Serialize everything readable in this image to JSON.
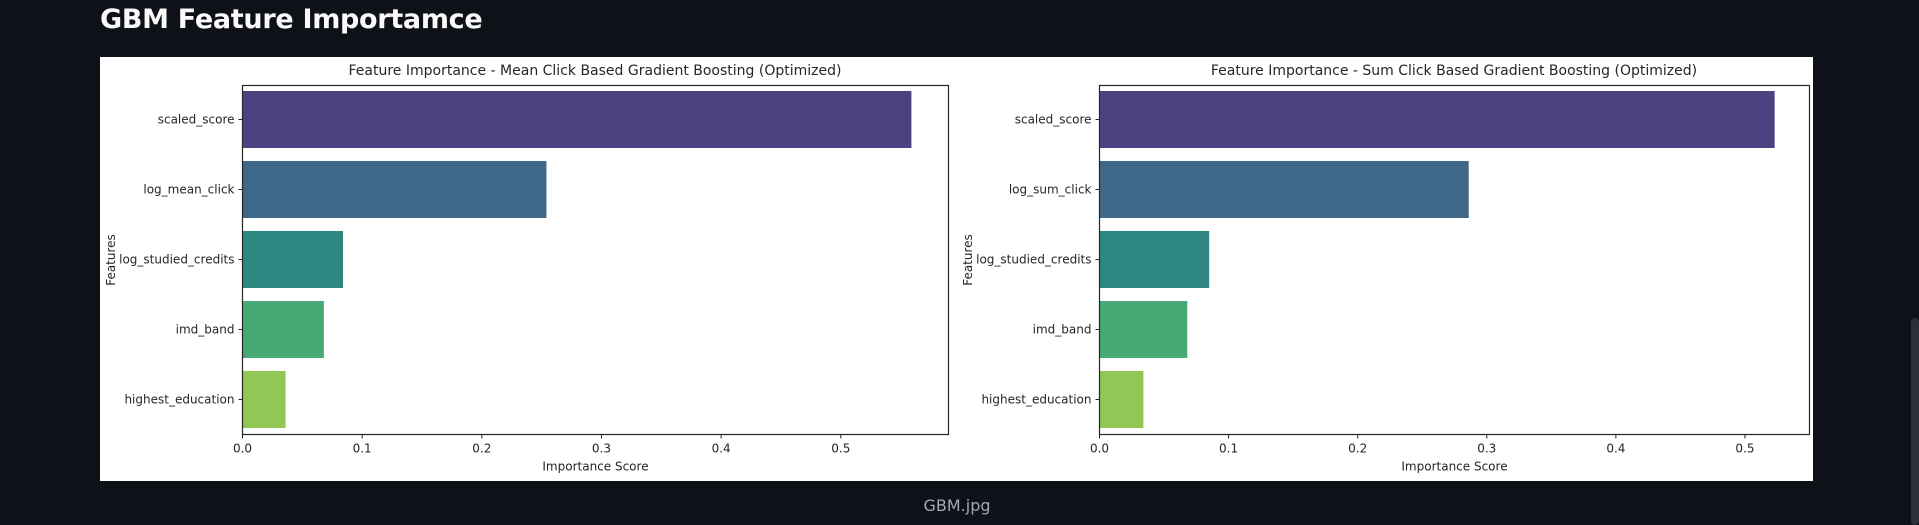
{
  "page": {
    "heading": "GBM Feature Importamce",
    "caption": "GBM.jpg"
  },
  "chart_data": [
    {
      "type": "bar",
      "orientation": "horizontal",
      "title": "Feature Importance - Mean Click Based Gradient Boosting (Optimized)",
      "xlabel": "Importance Score",
      "ylabel": "Features",
      "categories": [
        "scaled_score",
        "log_mean_click",
        "log_studied_credits",
        "imd_band",
        "highest_education"
      ],
      "values": [
        0.559,
        0.254,
        0.084,
        0.068,
        0.036
      ],
      "xlim": [
        0,
        0.59
      ],
      "xticks": [
        0.0,
        0.1,
        0.2,
        0.3,
        0.4,
        0.5
      ],
      "xtick_labels": [
        "0.0",
        "0.1",
        "0.2",
        "0.3",
        "0.4",
        "0.5"
      ],
      "grid": false,
      "colors": [
        "#4c4281",
        "#3f6787",
        "#2f8781",
        "#48a974",
        "#91c754"
      ]
    },
    {
      "type": "bar",
      "orientation": "horizontal",
      "title": "Feature Importance - Sum Click Based Gradient Boosting (Optimized)",
      "xlabel": "Importance Score",
      "ylabel": "Features",
      "categories": [
        "scaled_score",
        "log_sum_click",
        "log_studied_credits",
        "imd_band",
        "highest_education"
      ],
      "values": [
        0.523,
        0.286,
        0.085,
        0.068,
        0.034
      ],
      "xlim": [
        0,
        0.55
      ],
      "xticks": [
        0.0,
        0.1,
        0.2,
        0.3,
        0.4,
        0.5
      ],
      "xtick_labels": [
        "0.0",
        "0.1",
        "0.2",
        "0.3",
        "0.4",
        "0.5"
      ],
      "grid": false,
      "colors": [
        "#4c4281",
        "#3f6787",
        "#2f8781",
        "#48a974",
        "#91c754"
      ]
    }
  ]
}
